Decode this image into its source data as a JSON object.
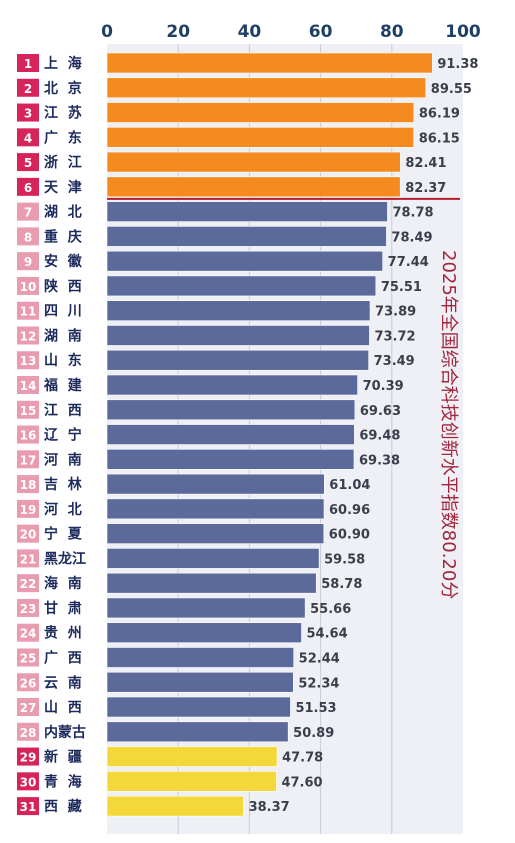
{
  "chart_data": {
    "type": "bar",
    "orientation": "horizontal",
    "xlim": [
      0,
      100
    ],
    "x_ticks": [
      "0",
      "20",
      "40",
      "60",
      "80",
      "100"
    ],
    "grid": true,
    "annotation": "2025年全国综合科技创新水平指数80.20分",
    "reference_value": 80.2,
    "colors": {
      "top": "#f58a1f",
      "middle": "#5b6a9a",
      "bottom": "#f4d83a",
      "rank_top": "#d6245a",
      "rank_mid": "#e99bb0",
      "reference": "#b51d2a"
    },
    "categories": [
      {
        "rank": "1",
        "name": "上  海",
        "value": 91.38,
        "label": "91.38",
        "group": "top"
      },
      {
        "rank": "2",
        "name": "北  京",
        "value": 89.55,
        "label": "89.55",
        "group": "top"
      },
      {
        "rank": "3",
        "name": "江  苏",
        "value": 86.19,
        "label": "86.19",
        "group": "top"
      },
      {
        "rank": "4",
        "name": "广  东",
        "value": 86.15,
        "label": "86.15",
        "group": "top"
      },
      {
        "rank": "5",
        "name": "浙  江",
        "value": 82.41,
        "label": "82.41",
        "group": "top"
      },
      {
        "rank": "6",
        "name": "天  津",
        "value": 82.37,
        "label": "82.37",
        "group": "top"
      },
      {
        "rank": "7",
        "name": "湖  北",
        "value": 78.78,
        "label": "78.78",
        "group": "middle"
      },
      {
        "rank": "8",
        "name": "重  庆",
        "value": 78.49,
        "label": "78.49",
        "group": "middle"
      },
      {
        "rank": "9",
        "name": "安  徽",
        "value": 77.44,
        "label": "77.44",
        "group": "middle"
      },
      {
        "rank": "10",
        "name": "陕  西",
        "value": 75.51,
        "label": "75.51",
        "group": "middle"
      },
      {
        "rank": "11",
        "name": "四  川",
        "value": 73.89,
        "label": "73.89",
        "group": "middle"
      },
      {
        "rank": "12",
        "name": "湖  南",
        "value": 73.72,
        "label": "73.72",
        "group": "middle"
      },
      {
        "rank": "13",
        "name": "山  东",
        "value": 73.49,
        "label": "73.49",
        "group": "middle"
      },
      {
        "rank": "14",
        "name": "福  建",
        "value": 70.39,
        "label": "70.39",
        "group": "middle"
      },
      {
        "rank": "15",
        "name": "江  西",
        "value": 69.63,
        "label": "69.63",
        "group": "middle"
      },
      {
        "rank": "16",
        "name": "辽  宁",
        "value": 69.48,
        "label": "69.48",
        "group": "middle"
      },
      {
        "rank": "17",
        "name": "河  南",
        "value": 69.38,
        "label": "69.38",
        "group": "middle"
      },
      {
        "rank": "18",
        "name": "吉  林",
        "value": 61.04,
        "label": "61.04",
        "group": "middle"
      },
      {
        "rank": "19",
        "name": "河  北",
        "value": 60.96,
        "label": "60.96",
        "group": "middle"
      },
      {
        "rank": "20",
        "name": "宁  夏",
        "value": 60.9,
        "label": "60.90",
        "group": "middle"
      },
      {
        "rank": "21",
        "name": "黑龙江",
        "value": 59.58,
        "label": "59.58",
        "group": "middle"
      },
      {
        "rank": "22",
        "name": "海  南",
        "value": 58.78,
        "label": "58.78",
        "group": "middle"
      },
      {
        "rank": "23",
        "name": "甘  肃",
        "value": 55.66,
        "label": "55.66",
        "group": "middle"
      },
      {
        "rank": "24",
        "name": "贵  州",
        "value": 54.64,
        "label": "54.64",
        "group": "middle"
      },
      {
        "rank": "25",
        "name": "广  西",
        "value": 52.44,
        "label": "52.44",
        "group": "middle"
      },
      {
        "rank": "26",
        "name": "云  南",
        "value": 52.34,
        "label": "52.34",
        "group": "middle"
      },
      {
        "rank": "27",
        "name": "山  西",
        "value": 51.53,
        "label": "51.53",
        "group": "middle"
      },
      {
        "rank": "28",
        "name": "内蒙古",
        "value": 50.89,
        "label": "50.89",
        "group": "middle"
      },
      {
        "rank": "29",
        "name": "新  疆",
        "value": 47.78,
        "label": "47.78",
        "group": "bottom"
      },
      {
        "rank": "30",
        "name": "青  海",
        "value": 47.6,
        "label": "47.60",
        "group": "bottom"
      },
      {
        "rank": "31",
        "name": "西  藏",
        "value": 38.37,
        "label": "38.37",
        "group": "bottom"
      }
    ]
  }
}
